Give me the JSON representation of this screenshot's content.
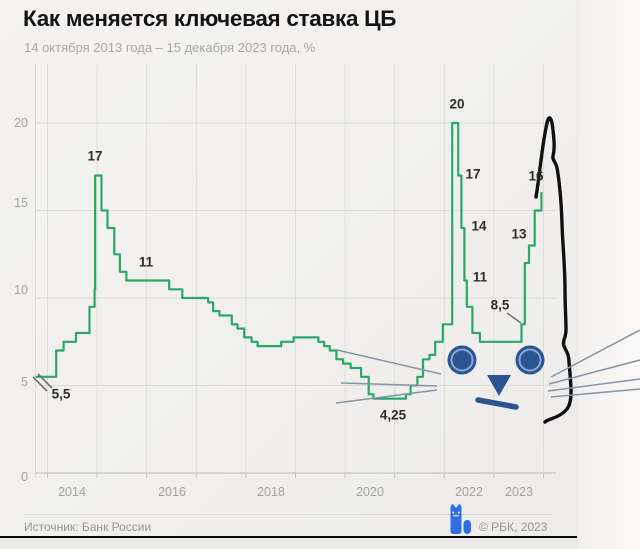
{
  "header": {
    "title": "Как меняется ключевая ставка ЦБ",
    "subtitle": "14 октября 2013 года – 15 декабря 2023 года, %"
  },
  "footer": {
    "source": "Источник: Банк России",
    "copyright": "© РБК, 2023"
  },
  "colors": {
    "line_green": "#2ca76c",
    "grid": "#dcdcd9",
    "axis": "#c6c6c3",
    "axis_text": "#a2a29f",
    "annotation_text": "#2e2e2c",
    "leader": "#6f6f6c",
    "logo_blue": "#2f6ee0",
    "background": "#f0efed"
  },
  "meme": {
    "description": "hand-drawn cat face over the rate chart: eyes, nose, mouth, whiskers and black outline turning the 2023 spike into a cat ear",
    "eye_color": "#2b5490",
    "eye_ring_color": "#84a9d3",
    "nose_color": "#2b5490",
    "mouth_color": "#2b5490",
    "whisker_color": "#8495a5",
    "outline_color": "#111111"
  },
  "chart_data": {
    "type": "line",
    "step": true,
    "title": "Как меняется ключевая ставка ЦБ",
    "period": "14 октября 2013 года – 15 декабря 2023 года",
    "ylabel": "%",
    "ylim": [
      0,
      20.5
    ],
    "grid": true,
    "y_ticks": [
      "0",
      "5",
      "10",
      "15",
      "20"
    ],
    "x_tick_labels": [
      "2014",
      "2016",
      "2018",
      "2020",
      "2022",
      "2023"
    ],
    "series": [
      {
        "name": "Ключевая ставка ЦБ, %",
        "color": "#2ca76c",
        "points": [
          [
            "2013-10-14",
            5.5
          ],
          [
            "2014-03-03",
            7
          ],
          [
            "2014-04-28",
            7.5
          ],
          [
            "2014-07-28",
            8
          ],
          [
            "2014-11-05",
            9.5
          ],
          [
            "2014-12-12",
            10.5
          ],
          [
            "2014-12-16",
            17
          ],
          [
            "2015-02-02",
            15
          ],
          [
            "2015-03-16",
            14
          ],
          [
            "2015-05-05",
            12.5
          ],
          [
            "2015-06-16",
            11.5
          ],
          [
            "2015-08-03",
            11
          ],
          [
            "2016-06-14",
            10.5
          ],
          [
            "2016-09-19",
            10
          ],
          [
            "2017-03-27",
            9.75
          ],
          [
            "2017-05-02",
            9.25
          ],
          [
            "2017-06-19",
            9
          ],
          [
            "2017-09-18",
            8.5
          ],
          [
            "2017-10-30",
            8.25
          ],
          [
            "2017-12-18",
            7.75
          ],
          [
            "2018-02-12",
            7.5
          ],
          [
            "2018-03-26",
            7.25
          ],
          [
            "2018-09-17",
            7.5
          ],
          [
            "2018-12-17",
            7.75
          ],
          [
            "2019-06-17",
            7.5
          ],
          [
            "2019-07-29",
            7.25
          ],
          [
            "2019-09-09",
            7
          ],
          [
            "2019-10-28",
            6.5
          ],
          [
            "2019-12-16",
            6.25
          ],
          [
            "2020-02-10",
            6
          ],
          [
            "2020-04-27",
            5.5
          ],
          [
            "2020-06-22",
            4.5
          ],
          [
            "2020-07-27",
            4.25
          ],
          [
            "2021-03-22",
            4.5
          ],
          [
            "2021-04-26",
            5
          ],
          [
            "2021-06-15",
            5.5
          ],
          [
            "2021-07-26",
            6.5
          ],
          [
            "2021-09-13",
            6.75
          ],
          [
            "2021-10-25",
            7.5
          ],
          [
            "2021-12-20",
            8.5
          ],
          [
            "2022-02-28",
            20
          ],
          [
            "2022-04-11",
            17
          ],
          [
            "2022-05-04",
            14
          ],
          [
            "2022-05-27",
            11
          ],
          [
            "2022-06-14",
            9.5
          ],
          [
            "2022-07-25",
            8
          ],
          [
            "2022-09-19",
            7.5
          ],
          [
            "2023-07-21",
            8.5
          ],
          [
            "2023-08-15",
            12
          ],
          [
            "2023-09-15",
            13
          ],
          [
            "2023-10-27",
            15
          ],
          [
            "2023-12-15",
            16
          ]
        ]
      }
    ],
    "annotations": [
      {
        "label": "17",
        "value": 17,
        "date": "2014-12-16"
      },
      {
        "label": "11",
        "value": 11,
        "date": "2015-08-03"
      },
      {
        "label": "5,5",
        "value": 5.5,
        "date": "2013-10-14"
      },
      {
        "label": "4,25",
        "value": 4.25,
        "date": "2020-07-27"
      },
      {
        "label": "20",
        "value": 20,
        "date": "2022-02-28"
      },
      {
        "label": "17",
        "value": 17,
        "date": "2022-04-11"
      },
      {
        "label": "14",
        "value": 14,
        "date": "2022-05-04"
      },
      {
        "label": "11",
        "value": 11,
        "date": "2022-05-27"
      },
      {
        "label": "8,5",
        "value": 8.5,
        "date": "2023-07-21"
      },
      {
        "label": "13",
        "value": 13,
        "date": "2023-09-15"
      },
      {
        "label": "16",
        "value": 16,
        "date": "2023-12-15"
      }
    ]
  }
}
